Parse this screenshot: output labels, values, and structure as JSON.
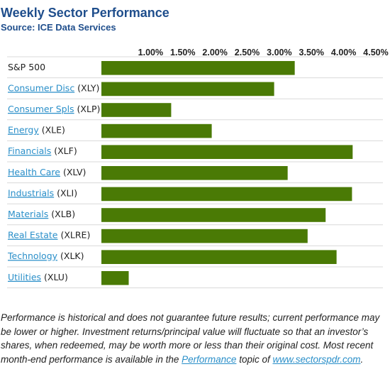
{
  "header": {
    "title": "Weekly Sector Performance",
    "subtitle": "Source: ICE Data Services"
  },
  "colors": {
    "bar": "#4a7a05",
    "link": "#2a8fc9",
    "title": "#1f4e8c",
    "grid": "#d9d9d9"
  },
  "chart_data": {
    "type": "bar",
    "orientation": "horizontal",
    "xaxis_position": "top",
    "xlim": [
      0.5,
      4.5
    ],
    "xticks": [
      "1.00%",
      "1.50%",
      "2.00%",
      "2.50%",
      "3.00%",
      "3.50%",
      "4.00%",
      "4.50%"
    ],
    "xtick_values": [
      1.0,
      1.5,
      2.0,
      2.5,
      3.0,
      3.5,
      4.0,
      4.5
    ],
    "grid": true,
    "categories": [
      {
        "name": "S&P 500",
        "ticker": "",
        "link": false
      },
      {
        "name": "Consumer Disc",
        "ticker": "(XLY)",
        "link": true
      },
      {
        "name": "Consumer Spls",
        "ticker": "(XLP)",
        "link": true
      },
      {
        "name": "Energy",
        "ticker": "(XLE)",
        "link": true
      },
      {
        "name": "Financials",
        "ticker": "(XLF)",
        "link": true
      },
      {
        "name": "Health Care",
        "ticker": "(XLV)",
        "link": true
      },
      {
        "name": "Industrials",
        "ticker": "(XLI)",
        "link": true
      },
      {
        "name": "Materials",
        "ticker": "(XLB)",
        "link": true
      },
      {
        "name": "Real Estate",
        "ticker": "(XLRE)",
        "link": true
      },
      {
        "name": "Technology",
        "ticker": "(XLK)",
        "link": true
      },
      {
        "name": "Utilities",
        "ticker": "(XLU)",
        "link": true
      }
    ],
    "values": [
      3.24,
      2.92,
      1.32,
      1.95,
      4.14,
      3.13,
      4.13,
      3.72,
      3.44,
      3.89,
      0.66
    ]
  },
  "footnote": {
    "text_before": "Performance is historical and does not guarantee future results; current performance may be lower or higher. Investment returns/principal value will fluctuate so that an investor’s shares, when redeemed, may be worth more or less than their original cost. Most recent month-end performance is available in the ",
    "link1": "Performance",
    "text_middle": " topic of ",
    "link2": "www.sectorspdr.com",
    "text_after": "."
  }
}
